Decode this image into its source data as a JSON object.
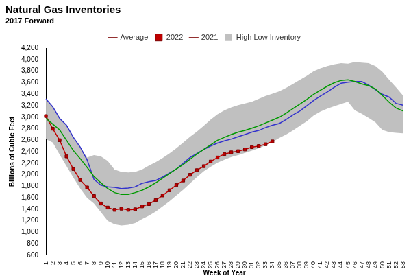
{
  "chart_data": {
    "type": "line",
    "title": "Natural Gas Inventories",
    "subtitle": "2017 Forward",
    "x_label": "Week of Year",
    "y_label": "Billions of Cubic Feet",
    "categories": [
      "1",
      "2",
      "3",
      "4",
      "5",
      "6",
      "7",
      "8",
      "9",
      "10",
      "11",
      "12",
      "13",
      "14",
      "15",
      "16",
      "17",
      "18",
      "19",
      "20",
      "21",
      "22",
      "23",
      "24",
      "25",
      "26",
      "27",
      "28",
      "29",
      "30",
      "31",
      "32",
      "33",
      "34",
      "35",
      "36",
      "37",
      "38",
      "39",
      "40",
      "41",
      "42",
      "43",
      "44",
      "45",
      "46",
      "47",
      "48",
      "49",
      "50",
      "51",
      "52",
      "53"
    ],
    "series": [
      {
        "name": "High Low Inventory",
        "type": "area",
        "color": "#c0c0c0",
        "high": [
          3320,
          3180,
          2980,
          2860,
          2660,
          2480,
          2300,
          2340,
          2320,
          2240,
          2090,
          2050,
          2040,
          2050,
          2090,
          2160,
          2220,
          2290,
          2370,
          2460,
          2560,
          2660,
          2750,
          2850,
          2960,
          3050,
          3120,
          3170,
          3210,
          3240,
          3270,
          3320,
          3370,
          3410,
          3450,
          3510,
          3580,
          3650,
          3720,
          3800,
          3850,
          3890,
          3920,
          3940,
          3930,
          3960,
          3950,
          3940,
          3890,
          3790,
          3650,
          3520,
          3380
        ],
        "low": [
          2620,
          2560,
          2350,
          2150,
          1950,
          1760,
          1600,
          1500,
          1350,
          1200,
          1140,
          1120,
          1130,
          1160,
          1230,
          1290,
          1360,
          1450,
          1540,
          1640,
          1740,
          1850,
          1960,
          2060,
          2140,
          2210,
          2260,
          2310,
          2340,
          2380,
          2420,
          2460,
          2510,
          2570,
          2640,
          2700,
          2770,
          2850,
          2930,
          3030,
          3100,
          3150,
          3190,
          3230,
          3270,
          3120,
          3060,
          2990,
          2910,
          2780,
          2740,
          2730,
          2720
        ]
      },
      {
        "name": "Average",
        "color": "#009900",
        "line_style": "solid",
        "values": [
          2980,
          2880,
          2780,
          2600,
          2420,
          2280,
          2130,
          1970,
          1860,
          1760,
          1690,
          1660,
          1660,
          1690,
          1730,
          1790,
          1860,
          1940,
          2020,
          2100,
          2180,
          2270,
          2360,
          2440,
          2520,
          2600,
          2650,
          2700,
          2740,
          2770,
          2810,
          2850,
          2900,
          2950,
          3000,
          3070,
          3150,
          3230,
          3310,
          3400,
          3470,
          3540,
          3600,
          3640,
          3650,
          3620,
          3580,
          3550,
          3490,
          3380,
          3260,
          3160,
          3110
        ]
      },
      {
        "name": "2022",
        "color": "#c00000",
        "line_style": "solid",
        "marker": "square",
        "values": [
          3020,
          2800,
          2600,
          2320,
          2100,
          1910,
          1780,
          1630,
          1500,
          1430,
          1390,
          1410,
          1390,
          1400,
          1450,
          1490,
          1560,
          1640,
          1730,
          1820,
          1900,
          2000,
          2080,
          2150,
          2230,
          2300,
          2360,
          2390,
          2410,
          2440,
          2480,
          2500,
          2530,
          2580,
          null,
          null,
          null,
          null,
          null,
          null,
          null,
          null,
          null,
          null,
          null,
          null,
          null,
          null,
          null,
          null,
          null,
          null,
          null
        ]
      },
      {
        "name": "2021",
        "color": "#3333cc",
        "line_style": "solid",
        "values": [
          3320,
          3180,
          2980,
          2860,
          2650,
          2480,
          2260,
          1920,
          1820,
          1790,
          1780,
          1760,
          1770,
          1790,
          1850,
          1880,
          1900,
          1960,
          2030,
          2100,
          2200,
          2300,
          2370,
          2440,
          2500,
          2550,
          2590,
          2620,
          2660,
          2700,
          2740,
          2770,
          2820,
          2860,
          2890,
          2960,
          3040,
          3110,
          3200,
          3290,
          3370,
          3440,
          3520,
          3590,
          3610,
          3620,
          3620,
          3560,
          3480,
          3400,
          3350,
          3240,
          3210
        ]
      }
    ],
    "ylim": [
      600,
      4200
    ],
    "yticks": [
      600,
      800,
      {
        "value": 1000,
        "label": "1,000"
      },
      {
        "value": 1200,
        "label": "1,200"
      },
      {
        "value": 1400,
        "label": "1,400"
      },
      {
        "value": 1600,
        "label": "1,600"
      },
      {
        "value": 1800,
        "label": "1,800"
      },
      {
        "value": 2000,
        "label": "2,000"
      },
      {
        "value": 2200,
        "label": "2,200"
      },
      {
        "value": 2400,
        "label": "2,400"
      },
      {
        "value": 2600,
        "label": "2,600"
      },
      {
        "value": 2800,
        "label": "2,800"
      },
      {
        "value": 3000,
        "label": "3,000"
      },
      {
        "value": 3200,
        "label": "3,200"
      },
      {
        "value": 3400,
        "label": "3,400"
      },
      {
        "value": 3600,
        "label": "3,600"
      },
      {
        "value": 3800,
        "label": "3,800"
      },
      {
        "value": 4000,
        "label": "4,000"
      },
      {
        "value": 4200,
        "label": "4,200"
      }
    ],
    "grid": false,
    "legend": "top"
  }
}
